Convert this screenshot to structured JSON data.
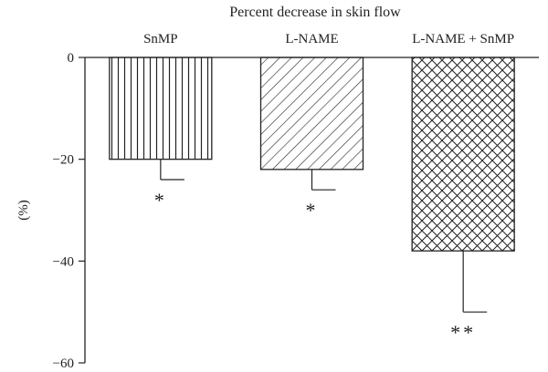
{
  "chart_data": {
    "type": "bar",
    "title": "Percent decrease in skin flow",
    "ylabel": "(%)",
    "xlabel": "",
    "ylim": [
      -60,
      0
    ],
    "yticks": [
      0,
      -20,
      -40,
      -60
    ],
    "categories": [
      "SnMP",
      "L-NAME",
      "L-NAME + SnMP"
    ],
    "values": [
      -20,
      -22,
      -38
    ],
    "errors": [
      4,
      4,
      12
    ],
    "significance": [
      "*",
      "*",
      "**"
    ],
    "patterns": [
      "vertical-lines",
      "diagonal-lines",
      "crosshatch"
    ],
    "bar_fill": "#ffffff",
    "line_color": "#222222",
    "grid": false
  }
}
